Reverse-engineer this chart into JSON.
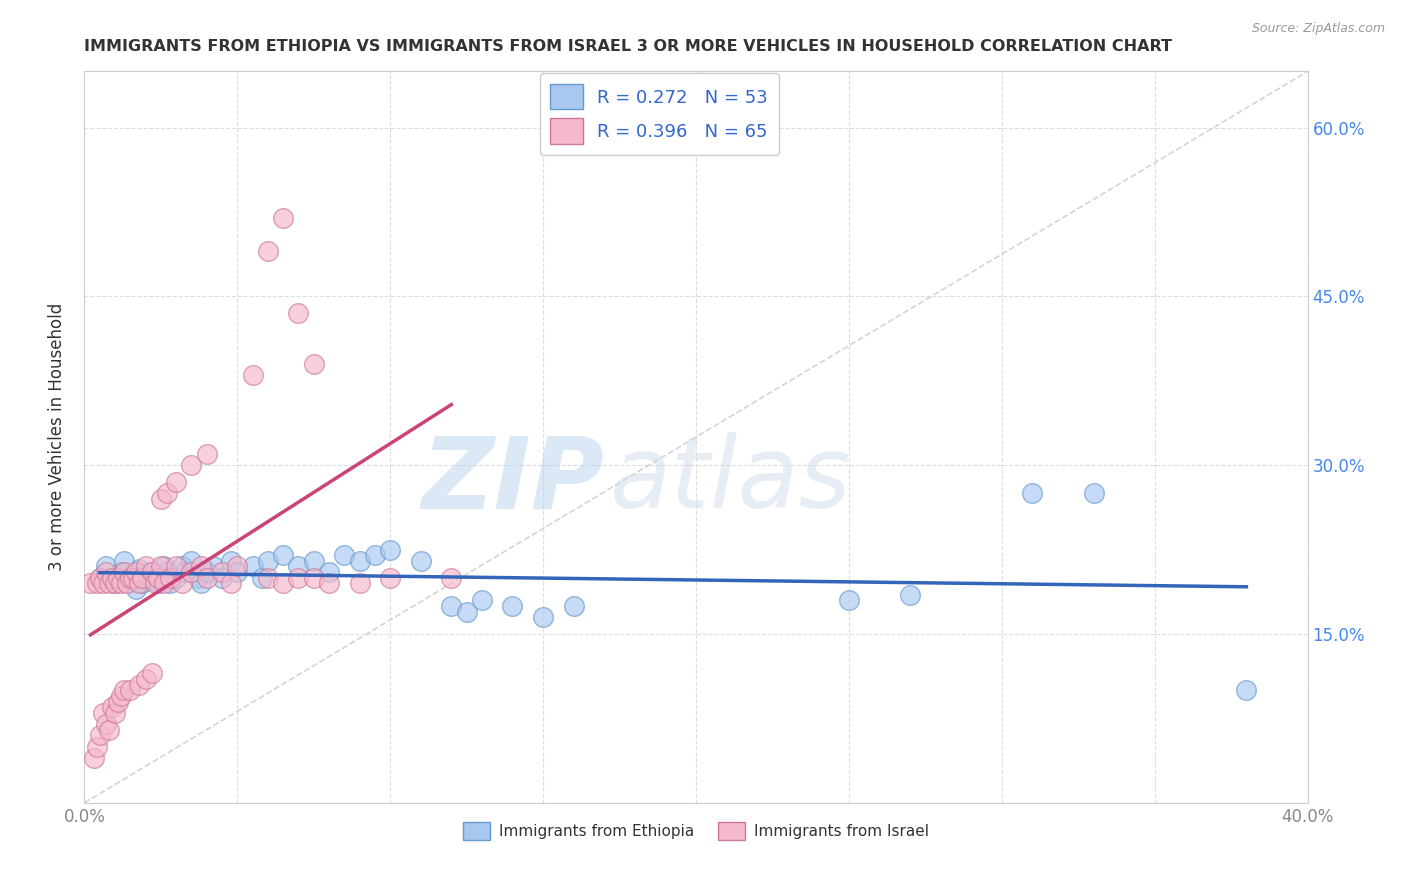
{
  "title": "IMMIGRANTS FROM ETHIOPIA VS IMMIGRANTS FROM ISRAEL 3 OR MORE VEHICLES IN HOUSEHOLD CORRELATION CHART",
  "source": "Source: ZipAtlas.com",
  "ylabel": "3 or more Vehicles in Household",
  "x_min": 0.0,
  "x_max": 0.4,
  "y_min": 0.0,
  "y_max": 0.65,
  "x_ticks": [
    0.0,
    0.05,
    0.1,
    0.15,
    0.2,
    0.25,
    0.3,
    0.35,
    0.4
  ],
  "y_ticks": [
    0.0,
    0.15,
    0.3,
    0.45,
    0.6
  ],
  "y_tick_labels_right": [
    "",
    "15.0%",
    "30.0%",
    "45.0%",
    "60.0%"
  ],
  "legend_entry_1": "R = 0.272   N = 53",
  "legend_entry_2": "R = 0.396   N = 65",
  "eth_color": "#a8c8f0",
  "eth_edge": "#6699cc",
  "eth_trend": "#3366bb",
  "isr_color": "#f5b8cc",
  "isr_edge": "#cc7799",
  "isr_trend": "#cc4477",
  "diag_color": "#d0d0d0",
  "watermark_zip": "ZIP",
  "watermark_atlas": "atlas",
  "bg_color": "#ffffff",
  "grid_color": "#dddddd",
  "ethiopia_points": [
    [
      0.005,
      0.2
    ],
    [
      0.007,
      0.21
    ],
    [
      0.01,
      0.195
    ],
    [
      0.012,
      0.205
    ],
    [
      0.013,
      0.215
    ],
    [
      0.015,
      0.198
    ],
    [
      0.016,
      0.202
    ],
    [
      0.017,
      0.19
    ],
    [
      0.018,
      0.208
    ],
    [
      0.019,
      0.195
    ],
    [
      0.02,
      0.2
    ],
    [
      0.021,
      0.205
    ],
    [
      0.022,
      0.198
    ],
    [
      0.023,
      0.202
    ],
    [
      0.024,
      0.195
    ],
    [
      0.025,
      0.2
    ],
    [
      0.026,
      0.21
    ],
    [
      0.027,
      0.205
    ],
    [
      0.028,
      0.195
    ],
    [
      0.03,
      0.2
    ],
    [
      0.032,
      0.21
    ],
    [
      0.033,
      0.205
    ],
    [
      0.035,
      0.215
    ],
    [
      0.037,
      0.2
    ],
    [
      0.038,
      0.195
    ],
    [
      0.04,
      0.205
    ],
    [
      0.042,
      0.21
    ],
    [
      0.045,
      0.2
    ],
    [
      0.048,
      0.215
    ],
    [
      0.05,
      0.205
    ],
    [
      0.055,
      0.21
    ],
    [
      0.058,
      0.2
    ],
    [
      0.06,
      0.215
    ],
    [
      0.065,
      0.22
    ],
    [
      0.07,
      0.21
    ],
    [
      0.075,
      0.215
    ],
    [
      0.08,
      0.205
    ],
    [
      0.085,
      0.22
    ],
    [
      0.09,
      0.215
    ],
    [
      0.095,
      0.22
    ],
    [
      0.1,
      0.225
    ],
    [
      0.11,
      0.215
    ],
    [
      0.12,
      0.175
    ],
    [
      0.125,
      0.17
    ],
    [
      0.13,
      0.18
    ],
    [
      0.14,
      0.175
    ],
    [
      0.15,
      0.165
    ],
    [
      0.16,
      0.175
    ],
    [
      0.25,
      0.18
    ],
    [
      0.27,
      0.185
    ],
    [
      0.31,
      0.275
    ],
    [
      0.33,
      0.275
    ],
    [
      0.38,
      0.1
    ]
  ],
  "israel_points": [
    [
      0.002,
      0.195
    ],
    [
      0.003,
      0.04
    ],
    [
      0.004,
      0.05
    ],
    [
      0.004,
      0.195
    ],
    [
      0.005,
      0.2
    ],
    [
      0.005,
      0.06
    ],
    [
      0.006,
      0.195
    ],
    [
      0.006,
      0.08
    ],
    [
      0.007,
      0.205
    ],
    [
      0.007,
      0.07
    ],
    [
      0.008,
      0.195
    ],
    [
      0.008,
      0.065
    ],
    [
      0.009,
      0.2
    ],
    [
      0.009,
      0.085
    ],
    [
      0.01,
      0.195
    ],
    [
      0.01,
      0.08
    ],
    [
      0.011,
      0.2
    ],
    [
      0.011,
      0.09
    ],
    [
      0.012,
      0.195
    ],
    [
      0.012,
      0.095
    ],
    [
      0.013,
      0.205
    ],
    [
      0.013,
      0.1
    ],
    [
      0.014,
      0.195
    ],
    [
      0.015,
      0.2
    ],
    [
      0.015,
      0.1
    ],
    [
      0.016,
      0.2
    ],
    [
      0.017,
      0.205
    ],
    [
      0.018,
      0.195
    ],
    [
      0.018,
      0.105
    ],
    [
      0.019,
      0.2
    ],
    [
      0.02,
      0.21
    ],
    [
      0.02,
      0.11
    ],
    [
      0.022,
      0.205
    ],
    [
      0.022,
      0.115
    ],
    [
      0.023,
      0.195
    ],
    [
      0.024,
      0.2
    ],
    [
      0.025,
      0.21
    ],
    [
      0.025,
      0.27
    ],
    [
      0.026,
      0.195
    ],
    [
      0.027,
      0.275
    ],
    [
      0.028,
      0.2
    ],
    [
      0.03,
      0.21
    ],
    [
      0.03,
      0.285
    ],
    [
      0.032,
      0.195
    ],
    [
      0.035,
      0.205
    ],
    [
      0.035,
      0.3
    ],
    [
      0.038,
      0.21
    ],
    [
      0.04,
      0.2
    ],
    [
      0.04,
      0.31
    ],
    [
      0.045,
      0.205
    ],
    [
      0.048,
      0.195
    ],
    [
      0.05,
      0.21
    ],
    [
      0.055,
      0.38
    ],
    [
      0.06,
      0.2
    ],
    [
      0.06,
      0.49
    ],
    [
      0.065,
      0.52
    ],
    [
      0.065,
      0.195
    ],
    [
      0.07,
      0.435
    ],
    [
      0.07,
      0.2
    ],
    [
      0.075,
      0.39
    ],
    [
      0.075,
      0.2
    ],
    [
      0.08,
      0.195
    ],
    [
      0.09,
      0.195
    ],
    [
      0.1,
      0.2
    ],
    [
      0.12,
      0.2
    ]
  ]
}
